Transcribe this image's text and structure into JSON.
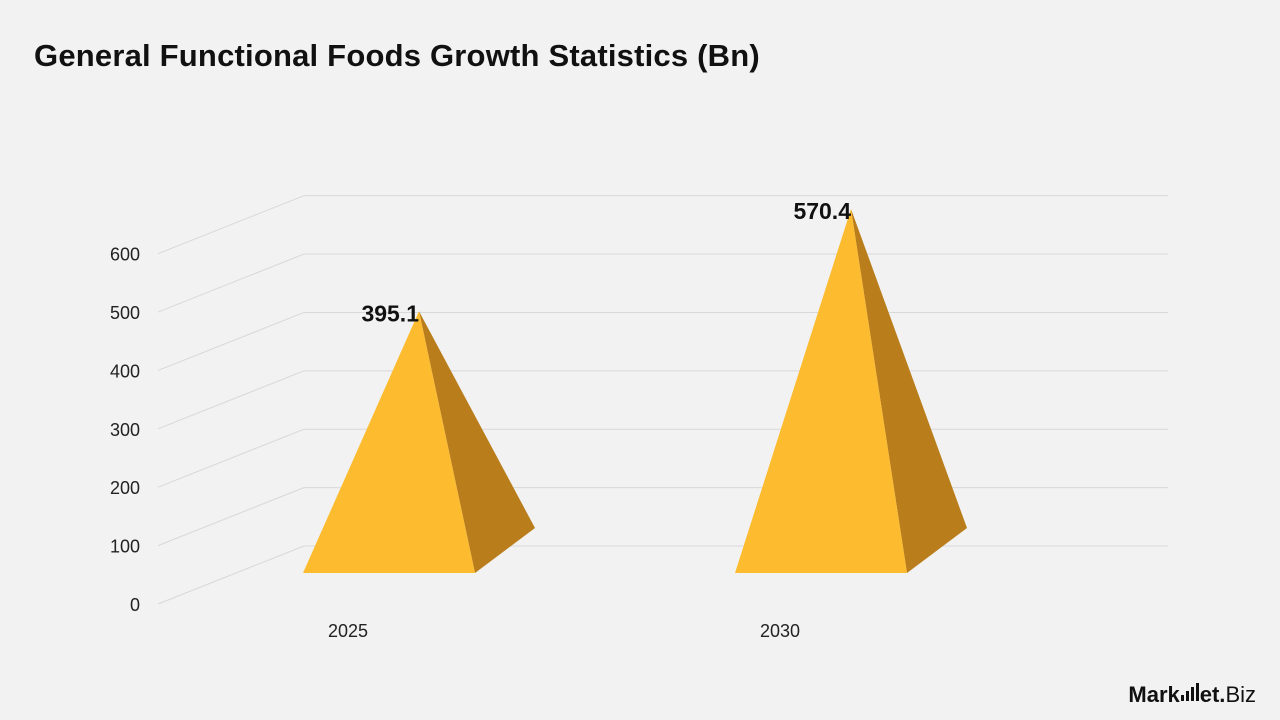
{
  "chart_data": {
    "type": "bar",
    "shape": "3d-pyramid",
    "title": "General Functional Foods Growth Statistics (Bn)",
    "xlabel": "",
    "ylabel": "",
    "categories": [
      "2025",
      "2030"
    ],
    "values": [
      395.1,
      570.4
    ],
    "value_labels": [
      "395.1",
      "570.4"
    ],
    "ylim": [
      0,
      700
    ],
    "yticks": [
      "0",
      "100",
      "200",
      "300",
      "400",
      "500",
      "600"
    ],
    "grid": true,
    "legend": "none",
    "colors": {
      "front_face": "#fdbb2f",
      "side_face": "#b97e1b",
      "gridline": "#d8d8d8",
      "background": "#f2f2f2"
    }
  },
  "brand": {
    "name_part1": "Mark",
    "name_part2": "et.",
    "name_part3": "Biz"
  }
}
